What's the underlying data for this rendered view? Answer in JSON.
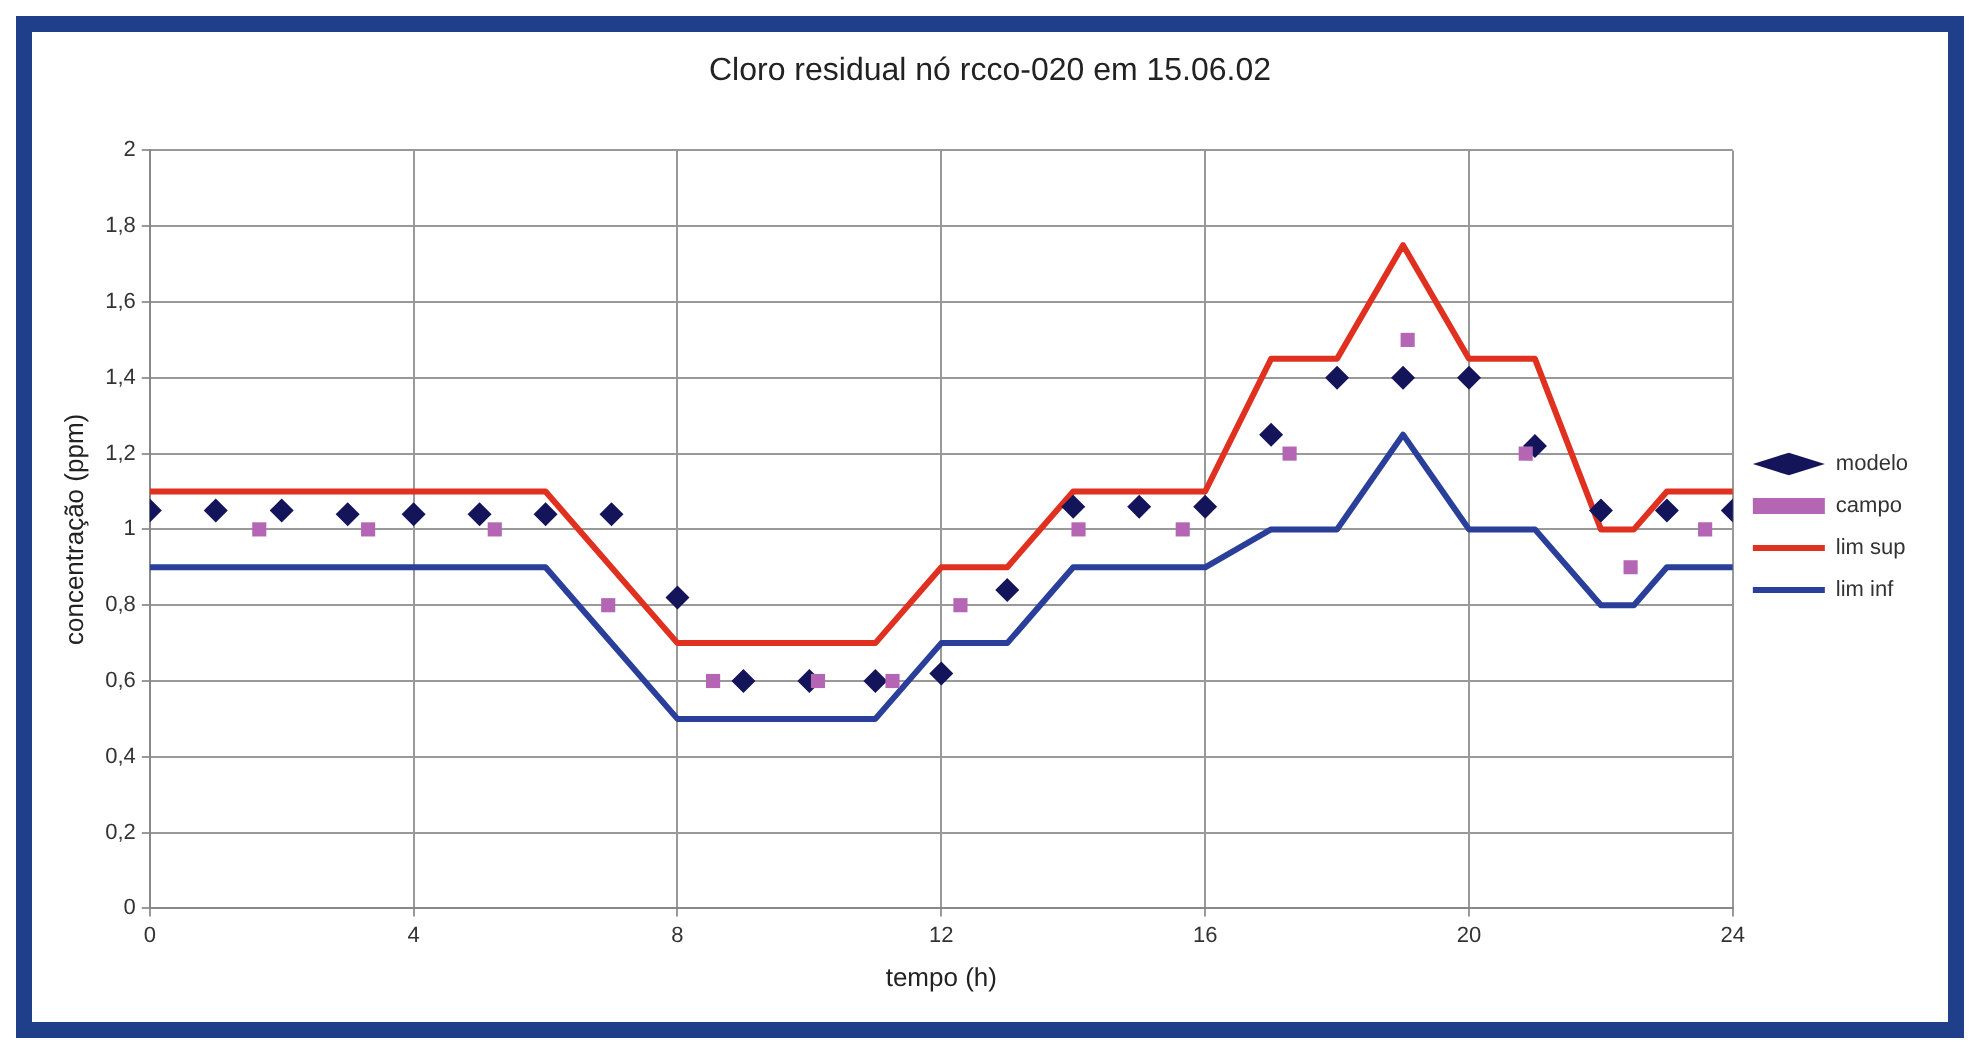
{
  "chart_data": {
    "type": "line",
    "title": "Cloro residual nó rcco-020 em 15.06.02",
    "xlabel": "tempo (h)",
    "ylabel": "concentração (ppm)",
    "xlim": [
      0,
      24
    ],
    "xticks": [
      0,
      4,
      8,
      12,
      16,
      20,
      24
    ],
    "ylim": [
      0,
      2
    ],
    "yticks": [
      0,
      {
        "value": 0.2,
        "label": "0,2"
      },
      {
        "value": 0.4,
        "label": "0,4"
      },
      {
        "value": 0.6,
        "label": "0,6"
      },
      {
        "value": 0.8,
        "label": "0,8"
      },
      1,
      {
        "value": 1.2,
        "label": "1,2"
      },
      {
        "value": 1.4,
        "label": "1,4"
      },
      {
        "value": 1.6,
        "label": "1,6"
      },
      {
        "value": 1.8,
        "label": "1,8"
      },
      2
    ],
    "grid": true,
    "legend": "right",
    "series": [
      {
        "name": "modelo",
        "type": "scatter",
        "marker": "diamond",
        "color": "#14145a",
        "x": [
          0,
          1,
          2,
          3,
          4,
          5,
          6,
          7,
          8,
          9,
          10,
          11,
          12,
          13,
          14,
          15,
          16,
          17,
          18,
          19,
          20,
          21,
          22,
          23,
          24
        ],
        "values": [
          1.05,
          1.05,
          1.05,
          1.04,
          1.04,
          1.04,
          1.04,
          1.04,
          0.82,
          0.6,
          0.6,
          0.6,
          0.62,
          0.84,
          1.06,
          1.06,
          1.06,
          1.25,
          1.4,
          1.4,
          1.4,
          1.22,
          1.05,
          1.05,
          1.05
        ]
      },
      {
        "name": "campo",
        "type": "scatter",
        "marker": "square",
        "color": "#b466b4",
        "x": [
          1.66,
          3.31,
          5.23,
          6.95,
          8.54,
          10.13,
          11.26,
          12.29,
          14.08,
          15.66,
          17.28,
          19.07,
          20.86,
          22.45,
          23.58
        ],
        "values": [
          1.0,
          1.0,
          1.0,
          0.8,
          0.6,
          0.6,
          0.6,
          0.8,
          1.0,
          1.0,
          1.2,
          1.5,
          1.2,
          0.9,
          1.0
        ]
      },
      {
        "name": "lim sup",
        "type": "line",
        "marker": "none",
        "line_style": "solid",
        "color": "#e03020",
        "x": [
          0,
          6,
          8,
          11,
          12,
          13,
          14,
          16,
          17,
          18,
          19,
          20,
          21,
          22,
          22.5,
          23,
          24
        ],
        "values": [
          1.1,
          1.1,
          0.7,
          0.7,
          0.9,
          0.9,
          1.1,
          1.1,
          1.45,
          1.45,
          1.75,
          1.45,
          1.45,
          1.0,
          1.0,
          1.1,
          1.1
        ]
      },
      {
        "name": "lim inf",
        "type": "line",
        "marker": "none",
        "line_style": "solid",
        "color": "#2a3f9a",
        "x": [
          0,
          6,
          8,
          11,
          12,
          13,
          14,
          16,
          17,
          18,
          19,
          20,
          21,
          22,
          22.5,
          23,
          24
        ],
        "values": [
          0.9,
          0.9,
          0.5,
          0.5,
          0.7,
          0.7,
          0.9,
          0.9,
          1.0,
          1.0,
          1.25,
          1.0,
          1.0,
          0.8,
          0.8,
          0.9,
          0.9
        ]
      }
    ]
  }
}
